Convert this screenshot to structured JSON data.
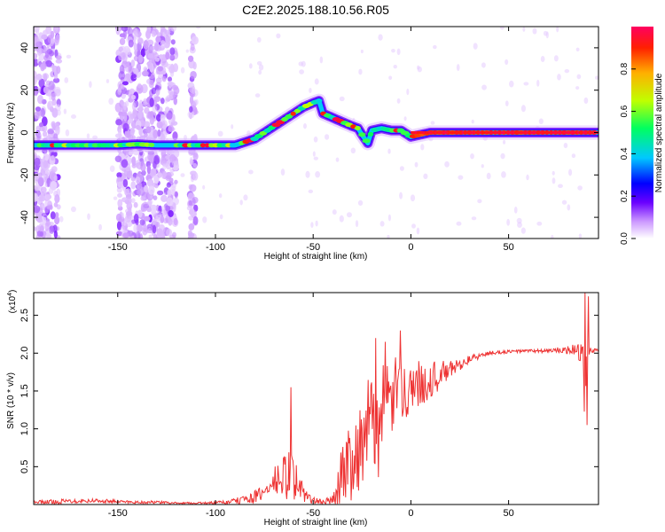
{
  "title": "C2E2.2025.188.10.56.R05",
  "chart_data": [
    {
      "type": "heatmap",
      "xlabel": "Height of straight line (km)",
      "ylabel": "Frequency (Hz)",
      "xlim": [
        -193,
        96
      ],
      "ylim": [
        -50,
        50
      ],
      "xticks": [
        -150,
        -100,
        -50,
        0,
        50
      ],
      "yticks": [
        -40,
        -20,
        0,
        20,
        40
      ],
      "colorbar": {
        "label": "Normalized spectral amplitude",
        "range": [
          0,
          1
        ],
        "ticks": [
          0.0,
          0.2,
          0.4,
          0.6,
          0.8
        ],
        "tick_labels": [
          "0.0",
          "0.2",
          "0.4",
          "0.6",
          "0.8"
        ],
        "colormap": [
          "#ffffff",
          "#cc99ff",
          "#6a00ff",
          "#0000ff",
          "#00c8ff",
          "#00ff60",
          "#c0ff00",
          "#ffb000",
          "#ff2000",
          "#ff0060"
        ]
      },
      "ridge": {
        "x": [
          -193,
          -180,
          -170,
          -160,
          -150,
          -140,
          -130,
          -120,
          -110,
          -100,
          -90,
          -80,
          -70,
          -60,
          -55,
          -50,
          -47,
          -45,
          -40,
          -35,
          -30,
          -27,
          -25,
          -22,
          -20,
          -15,
          -10,
          -5,
          0,
          5,
          10,
          20,
          30,
          40,
          50,
          60,
          70,
          80,
          90,
          96
        ],
        "y": [
          -6,
          -6,
          -6,
          -6,
          -6,
          -5.5,
          -6,
          -6,
          -6,
          -6,
          -6,
          -3,
          3,
          9,
          12,
          14,
          15,
          9,
          7,
          5,
          3,
          2,
          -1,
          -5,
          1,
          2,
          1,
          1,
          -2,
          -1,
          0,
          0,
          0,
          0,
          0,
          0,
          0,
          0,
          0,
          0
        ]
      },
      "noise_bands": [
        [
          -193,
          -180
        ],
        [
          -150,
          -120
        ],
        [
          -113,
          -110
        ]
      ]
    },
    {
      "type": "line",
      "xlabel": "Height of straight line (km)",
      "ylabel": "SNR (10 * v/v)",
      "y_multiplier": "(x10",
      "y_multiplier_exp": "4",
      "y_multiplier_close": ")",
      "xlim": [
        -193,
        96
      ],
      "ylim": [
        0,
        2.8
      ],
      "xticks": [
        -150,
        -100,
        -50,
        0,
        50
      ],
      "yticks": [
        0.5,
        1.0,
        1.5,
        2.0,
        2.5
      ],
      "ytick_labels": [
        "0.5",
        "1.0",
        "1.5",
        "2.0",
        "2.5"
      ],
      "series": [
        {
          "color": "#ee3333",
          "envelope": {
            "x": [
              -193,
              -180,
              -170,
              -160,
              -150,
              -140,
              -130,
              -120,
              -110,
              -100,
              -90,
              -80,
              -75,
              -70,
              -65,
              -62,
              -60,
              -55,
              -50,
              -45,
              -40,
              -38,
              -35,
              -33,
              -30,
              -28,
              -25,
              -22,
              -20,
              -18,
              -17,
              -15,
              -13,
              -12,
              -10,
              -8,
              -5,
              0,
              5,
              10,
              15,
              20,
              25,
              30,
              40,
              50,
              60,
              70,
              80,
              85,
              88,
              89,
              90,
              91,
              92,
              94,
              96
            ],
            "base": [
              0.03,
              0.04,
              0.05,
              0.05,
              0.04,
              0.03,
              0.03,
              0.02,
              0.02,
              0.02,
              0.04,
              0.1,
              0.15,
              0.3,
              0.35,
              0.4,
              0.35,
              0.15,
              0.05,
              0.03,
              0.05,
              0.15,
              0.45,
              0.55,
              0.6,
              0.7,
              0.85,
              0.95,
              1.05,
              1.1,
              1.0,
              1.2,
              1.3,
              1.3,
              1.35,
              1.5,
              1.5,
              1.55,
              1.6,
              1.65,
              1.7,
              1.78,
              1.85,
              1.92,
              2.0,
              2.02,
              2.03,
              2.03,
              2.04,
              2.05,
              1.95,
              1.05,
              1.95,
              2.0,
              2.02,
              2.03,
              2.03
            ],
            "amp": [
              0.02,
              0.03,
              0.03,
              0.03,
              0.02,
              0.02,
              0.02,
              0.01,
              0.01,
              0.02,
              0.04,
              0.08,
              0.12,
              0.2,
              0.3,
              0.35,
              0.3,
              0.12,
              0.05,
              0.03,
              0.08,
              0.2,
              0.4,
              0.5,
              0.55,
              0.6,
              0.65,
              0.7,
              0.75,
              0.75,
              0.7,
              0.6,
              0.6,
              0.6,
              0.55,
              0.45,
              0.4,
              0.35,
              0.3,
              0.25,
              0.2,
              0.12,
              0.08,
              0.05,
              0.03,
              0.02,
              0.02,
              0.03,
              0.05,
              0.08,
              0.25,
              0.2,
              0.3,
              0.15,
              0.05,
              0.03,
              0.03
            ]
          },
          "peaks": [
            {
              "x": -61.5,
              "y": 1.55
            },
            {
              "x": -18,
              "y": 2.2
            },
            {
              "x": -13,
              "y": 2.15
            },
            {
              "x": -5.5,
              "y": 2.3
            },
            {
              "x": 89,
              "y": 2.8
            },
            {
              "x": 91,
              "y": 2.75
            },
            {
              "x": 90,
              "y": 1.05
            }
          ]
        }
      ]
    }
  ]
}
